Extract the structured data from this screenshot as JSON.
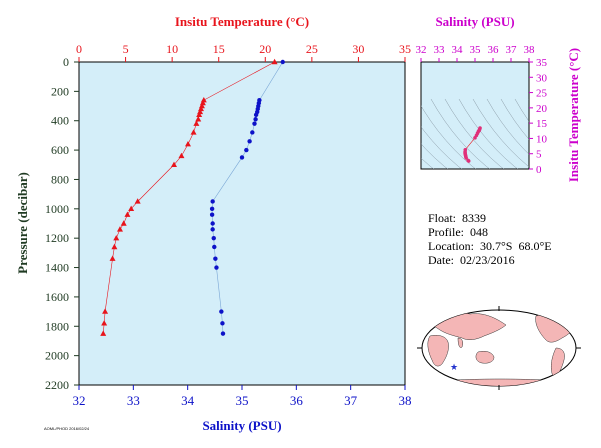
{
  "colors": {
    "temperature": "#e8141c",
    "salinity": "#0d12c8",
    "inset_axis": "#cc00cc",
    "plot_bg": "#d4eef9",
    "pressure_axis": "#1f3a22",
    "land": "#f4b6b6",
    "ocean": "#ffffff",
    "marker": "#2233cc"
  },
  "footnote": "AOML/PHOD 2016/02/24",
  "info": {
    "float_label": "Float:",
    "float_value": "8339",
    "profile_label": "Profile:",
    "profile_value": "048",
    "location_label": "Location:",
    "location_value": "30.7°S  68.0°E",
    "date_label": "Date:",
    "date_value": "02/23/2016"
  },
  "chart_data": [
    {
      "type": "line",
      "top_axis_title": "Insitu Temperature (°C)",
      "bottom_axis_title": "Salinity (PSU)",
      "ylabel": "Pressure (decibar)",
      "temperature_range": [
        0,
        35
      ],
      "temperature_ticks": [
        0,
        5,
        10,
        15,
        20,
        25,
        30,
        35
      ],
      "salinity_range": [
        32,
        38
      ],
      "salinity_ticks": [
        32,
        33,
        34,
        35,
        36,
        37,
        38
      ],
      "pressure_range": [
        0,
        2200
      ],
      "pressure_ticks": [
        0,
        200,
        400,
        600,
        800,
        1000,
        1200,
        1400,
        1600,
        1800,
        2000,
        2200
      ],
      "y_inverted": true,
      "grid": false,
      "series": [
        {
          "name": "Insitu Temperature",
          "marker": "triangle",
          "points": [
            [
              21.0,
              0
            ],
            [
              13.4,
              260
            ],
            [
              13.3,
              280
            ],
            [
              13.2,
              300
            ],
            [
              13.1,
              320
            ],
            [
              13.0,
              340
            ],
            [
              12.9,
              360
            ],
            [
              12.8,
              390
            ],
            [
              12.6,
              420
            ],
            [
              12.3,
              480
            ],
            [
              11.7,
              560
            ],
            [
              11.0,
              640
            ],
            [
              10.2,
              700
            ],
            [
              6.3,
              950
            ],
            [
              5.6,
              1000
            ],
            [
              5.2,
              1040
            ],
            [
              4.8,
              1100
            ],
            [
              4.4,
              1140
            ],
            [
              4.0,
              1200
            ],
            [
              3.8,
              1260
            ],
            [
              3.6,
              1340
            ],
            [
              2.8,
              1700
            ],
            [
              2.7,
              1780
            ],
            [
              2.6,
              1850
            ]
          ]
        },
        {
          "name": "Salinity",
          "marker": "circle",
          "points": [
            [
              35.75,
              0
            ],
            [
              35.32,
              260
            ],
            [
              35.31,
              280
            ],
            [
              35.3,
              300
            ],
            [
              35.29,
              320
            ],
            [
              35.28,
              340
            ],
            [
              35.26,
              360
            ],
            [
              35.25,
              390
            ],
            [
              35.23,
              420
            ],
            [
              35.19,
              480
            ],
            [
              35.14,
              540
            ],
            [
              35.08,
              600
            ],
            [
              35.0,
              650
            ],
            [
              34.46,
              950
            ],
            [
              34.45,
              1000
            ],
            [
              34.45,
              1040
            ],
            [
              34.46,
              1100
            ],
            [
              34.46,
              1140
            ],
            [
              34.48,
              1200
            ],
            [
              34.49,
              1260
            ],
            [
              34.51,
              1340
            ],
            [
              34.53,
              1400
            ],
            [
              34.62,
              1700
            ],
            [
              34.64,
              1780
            ],
            [
              34.65,
              1850
            ]
          ]
        }
      ]
    },
    {
      "type": "scatter",
      "xlabel": "Salinity (PSU)",
      "ylabel": "Insitu Temperature (°C)",
      "xlim": [
        32,
        38
      ],
      "ylim": [
        0,
        35
      ],
      "x_ticks": [
        32,
        33,
        34,
        35,
        36,
        37,
        38
      ],
      "y_ticks": [
        0,
        5,
        10,
        15,
        20,
        25,
        30,
        35
      ],
      "points": [
        [
          35.28,
          13.4
        ],
        [
          35.26,
          13.0
        ],
        [
          35.23,
          12.6
        ],
        [
          35.19,
          12.3
        ],
        [
          35.14,
          11.7
        ],
        [
          35.08,
          11.0
        ],
        [
          35.0,
          10.2
        ],
        [
          34.46,
          6.3
        ],
        [
          34.45,
          5.6
        ],
        [
          34.45,
          5.2
        ],
        [
          34.46,
          4.8
        ],
        [
          34.48,
          4.4
        ],
        [
          34.49,
          4.0
        ],
        [
          34.51,
          3.6
        ],
        [
          34.62,
          2.8
        ],
        [
          34.65,
          2.6
        ]
      ]
    }
  ]
}
